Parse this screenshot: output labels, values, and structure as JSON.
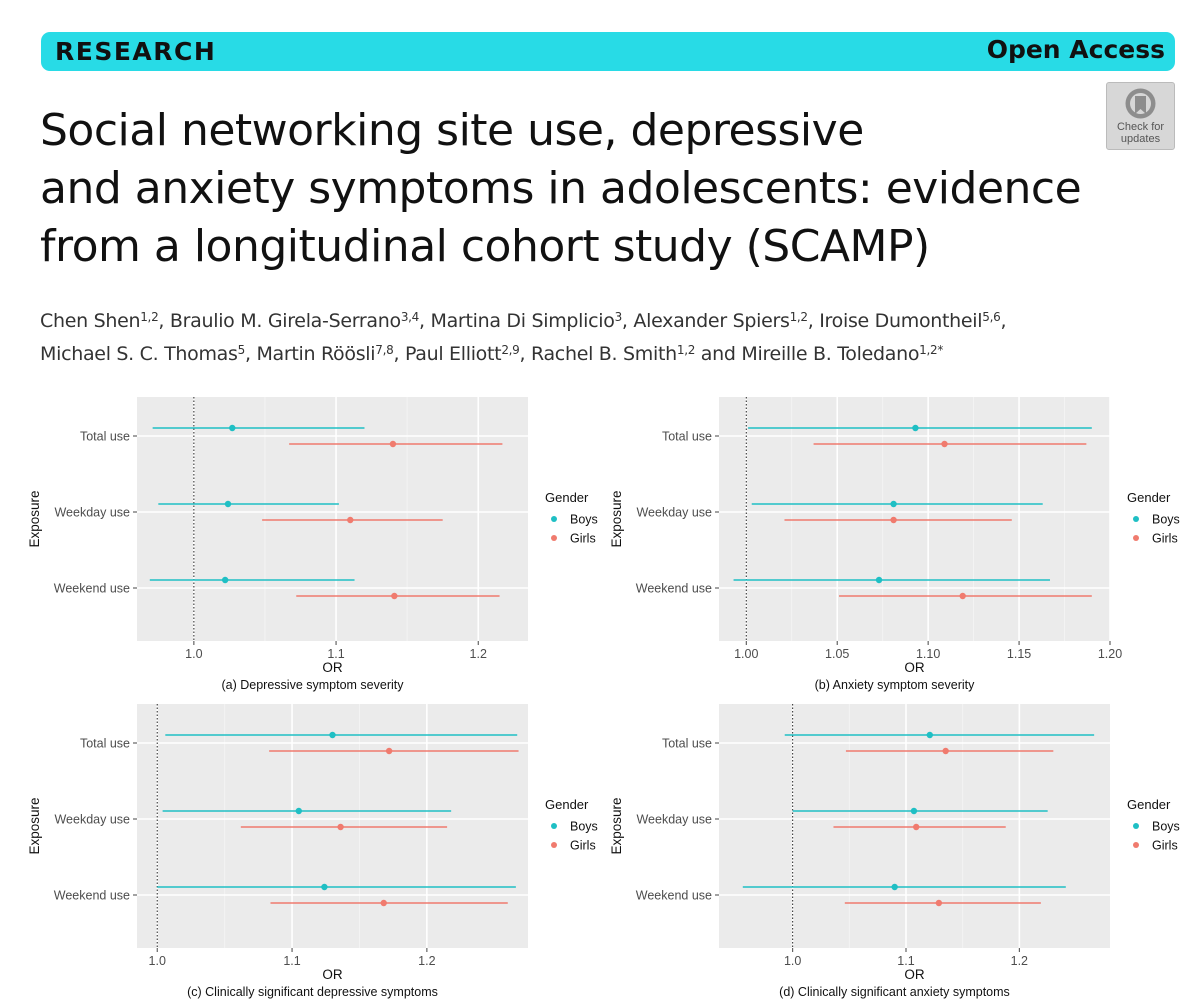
{
  "header": {
    "section_label": "RESEARCH",
    "access_label": "Open Access"
  },
  "title_lines": [
    "Social networking site use, depressive",
    "and anxiety symptoms in adolescents: evidence",
    "from a longitudinal cohort study (SCAMP)"
  ],
  "update_badge": {
    "icon": "check-for-updates-icon",
    "line1": "Check for",
    "line2": "updates"
  },
  "authors": [
    [
      {
        "name": "Chen Shen",
        "sup": "1,2",
        "sep": ", "
      },
      {
        "name": "Braulio M. Girela-Serrano",
        "sup": "3,4",
        "sep": ", "
      },
      {
        "name": "Martina Di Simplicio",
        "sup": "3",
        "sep": ", "
      },
      {
        "name": "Alexander Spiers",
        "sup": "1,2",
        "sep": ", "
      },
      {
        "name": "Iroise Dumontheil",
        "sup": "5,6",
        "sep": ","
      }
    ],
    [
      {
        "name": "Michael S. C. Thomas",
        "sup": "5",
        "sep": ", "
      },
      {
        "name": "Martin Röösli",
        "sup": "7,8",
        "sep": ", "
      },
      {
        "name": "Paul Elliott",
        "sup": "2,9",
        "sep": ", "
      },
      {
        "name": "Rachel B. Smith",
        "sup": "1,2",
        "sep": " and "
      },
      {
        "name": "Mireille B. Toledano",
        "sup": "1,2*",
        "sep": ""
      }
    ]
  ],
  "chart_data": [
    {
      "type": "forest",
      "caption": "(a) Depressive symptom severity",
      "xlabel": "OR",
      "ylabel": "Exposure",
      "xlim": [
        0.96,
        1.235
      ],
      "xticks": [
        {
          "value": 1.0,
          "label": "1.0"
        },
        {
          "value": 1.1,
          "label": "1.1"
        },
        {
          "value": 1.2,
          "label": "1.2"
        }
      ],
      "reference_line": 1.0,
      "categories": [
        "Total use",
        "Weekday use",
        "Weekend use"
      ],
      "legend": {
        "title": "Gender",
        "position": "right"
      },
      "series": [
        {
          "name": "Boys",
          "color": "#1fbfc4",
          "points": [
            {
              "category": "Total use",
              "estimate": 1.027,
              "lower": 0.971,
              "upper": 1.12
            },
            {
              "category": "Weekday use",
              "estimate": 1.024,
              "lower": 0.975,
              "upper": 1.102
            },
            {
              "category": "Weekend use",
              "estimate": 1.022,
              "lower": 0.969,
              "upper": 1.113
            }
          ]
        },
        {
          "name": "Girls",
          "color": "#f07b6e",
          "points": [
            {
              "category": "Total use",
              "estimate": 1.14,
              "lower": 1.067,
              "upper": 1.217
            },
            {
              "category": "Weekday use",
              "estimate": 1.11,
              "lower": 1.048,
              "upper": 1.175
            },
            {
              "category": "Weekend use",
              "estimate": 1.141,
              "lower": 1.072,
              "upper": 1.215
            }
          ]
        }
      ]
    },
    {
      "type": "forest",
      "caption": "(b) Anxiety symptom severity",
      "xlabel": "OR",
      "ylabel": "Exposure",
      "xlim": [
        0.985,
        1.2
      ],
      "xticks": [
        {
          "value": 1.0,
          "label": "1.00"
        },
        {
          "value": 1.05,
          "label": "1.05"
        },
        {
          "value": 1.1,
          "label": "1.10"
        },
        {
          "value": 1.15,
          "label": "1.15"
        },
        {
          "value": 1.2,
          "label": "1.20"
        }
      ],
      "reference_line": 1.0,
      "categories": [
        "Total use",
        "Weekday use",
        "Weekend use"
      ],
      "legend": {
        "title": "Gender",
        "position": "right"
      },
      "series": [
        {
          "name": "Boys",
          "color": "#1fbfc4",
          "points": [
            {
              "category": "Total use",
              "estimate": 1.093,
              "lower": 1.001,
              "upper": 1.19
            },
            {
              "category": "Weekday use",
              "estimate": 1.081,
              "lower": 1.003,
              "upper": 1.163
            },
            {
              "category": "Weekend use",
              "estimate": 1.073,
              "lower": 0.993,
              "upper": 1.167
            }
          ]
        },
        {
          "name": "Girls",
          "color": "#f07b6e",
          "points": [
            {
              "category": "Total use",
              "estimate": 1.109,
              "lower": 1.037,
              "upper": 1.187
            },
            {
              "category": "Weekday use",
              "estimate": 1.081,
              "lower": 1.021,
              "upper": 1.146
            },
            {
              "category": "Weekend use",
              "estimate": 1.119,
              "lower": 1.051,
              "upper": 1.19
            }
          ]
        }
      ]
    },
    {
      "type": "forest",
      "caption": "(c) Clinically significant depressive symptoms",
      "xlabel": "OR",
      "ylabel": "Exposure",
      "xlim": [
        0.985,
        1.275
      ],
      "xticks": [
        {
          "value": 1.0,
          "label": "1.0"
        },
        {
          "value": 1.1,
          "label": "1.1"
        },
        {
          "value": 1.2,
          "label": "1.2"
        }
      ],
      "reference_line": 1.0,
      "categories": [
        "Total use",
        "Weekday use",
        "Weekend use"
      ],
      "legend": {
        "title": "Gender",
        "position": "right"
      },
      "series": [
        {
          "name": "Boys",
          "color": "#1fbfc4",
          "points": [
            {
              "category": "Total use",
              "estimate": 1.13,
              "lower": 1.006,
              "upper": 1.267
            },
            {
              "category": "Weekday use",
              "estimate": 1.105,
              "lower": 1.004,
              "upper": 1.218
            },
            {
              "category": "Weekend use",
              "estimate": 1.124,
              "lower": 1.0,
              "upper": 1.266
            }
          ]
        },
        {
          "name": "Girls",
          "color": "#f07b6e",
          "points": [
            {
              "category": "Total use",
              "estimate": 1.172,
              "lower": 1.083,
              "upper": 1.268
            },
            {
              "category": "Weekday use",
              "estimate": 1.136,
              "lower": 1.062,
              "upper": 1.215
            },
            {
              "category": "Weekend use",
              "estimate": 1.168,
              "lower": 1.084,
              "upper": 1.26
            }
          ]
        }
      ]
    },
    {
      "type": "forest",
      "caption": "(d) Clinically significant anxiety symptoms",
      "xlabel": "OR",
      "ylabel": "Exposure",
      "xlim": [
        0.935,
        1.28
      ],
      "xticks": [
        {
          "value": 1.0,
          "label": "1.0"
        },
        {
          "value": 1.1,
          "label": "1.1"
        },
        {
          "value": 1.2,
          "label": "1.2"
        }
      ],
      "reference_line": 1.0,
      "categories": [
        "Total use",
        "Weekday use",
        "Weekend use"
      ],
      "legend": {
        "title": "Gender",
        "position": "right"
      },
      "series": [
        {
          "name": "Boys",
          "color": "#1fbfc4",
          "points": [
            {
              "category": "Total use",
              "estimate": 1.121,
              "lower": 0.993,
              "upper": 1.266
            },
            {
              "category": "Weekday use",
              "estimate": 1.107,
              "lower": 1.0,
              "upper": 1.225
            },
            {
              "category": "Weekend use",
              "estimate": 1.09,
              "lower": 0.956,
              "upper": 1.241
            }
          ]
        },
        {
          "name": "Girls",
          "color": "#f07b6e",
          "points": [
            {
              "category": "Total use",
              "estimate": 1.135,
              "lower": 1.047,
              "upper": 1.23
            },
            {
              "category": "Weekday use",
              "estimate": 1.109,
              "lower": 1.036,
              "upper": 1.188
            },
            {
              "category": "Weekend use",
              "estimate": 1.129,
              "lower": 1.046,
              "upper": 1.219
            }
          ]
        }
      ]
    }
  ]
}
